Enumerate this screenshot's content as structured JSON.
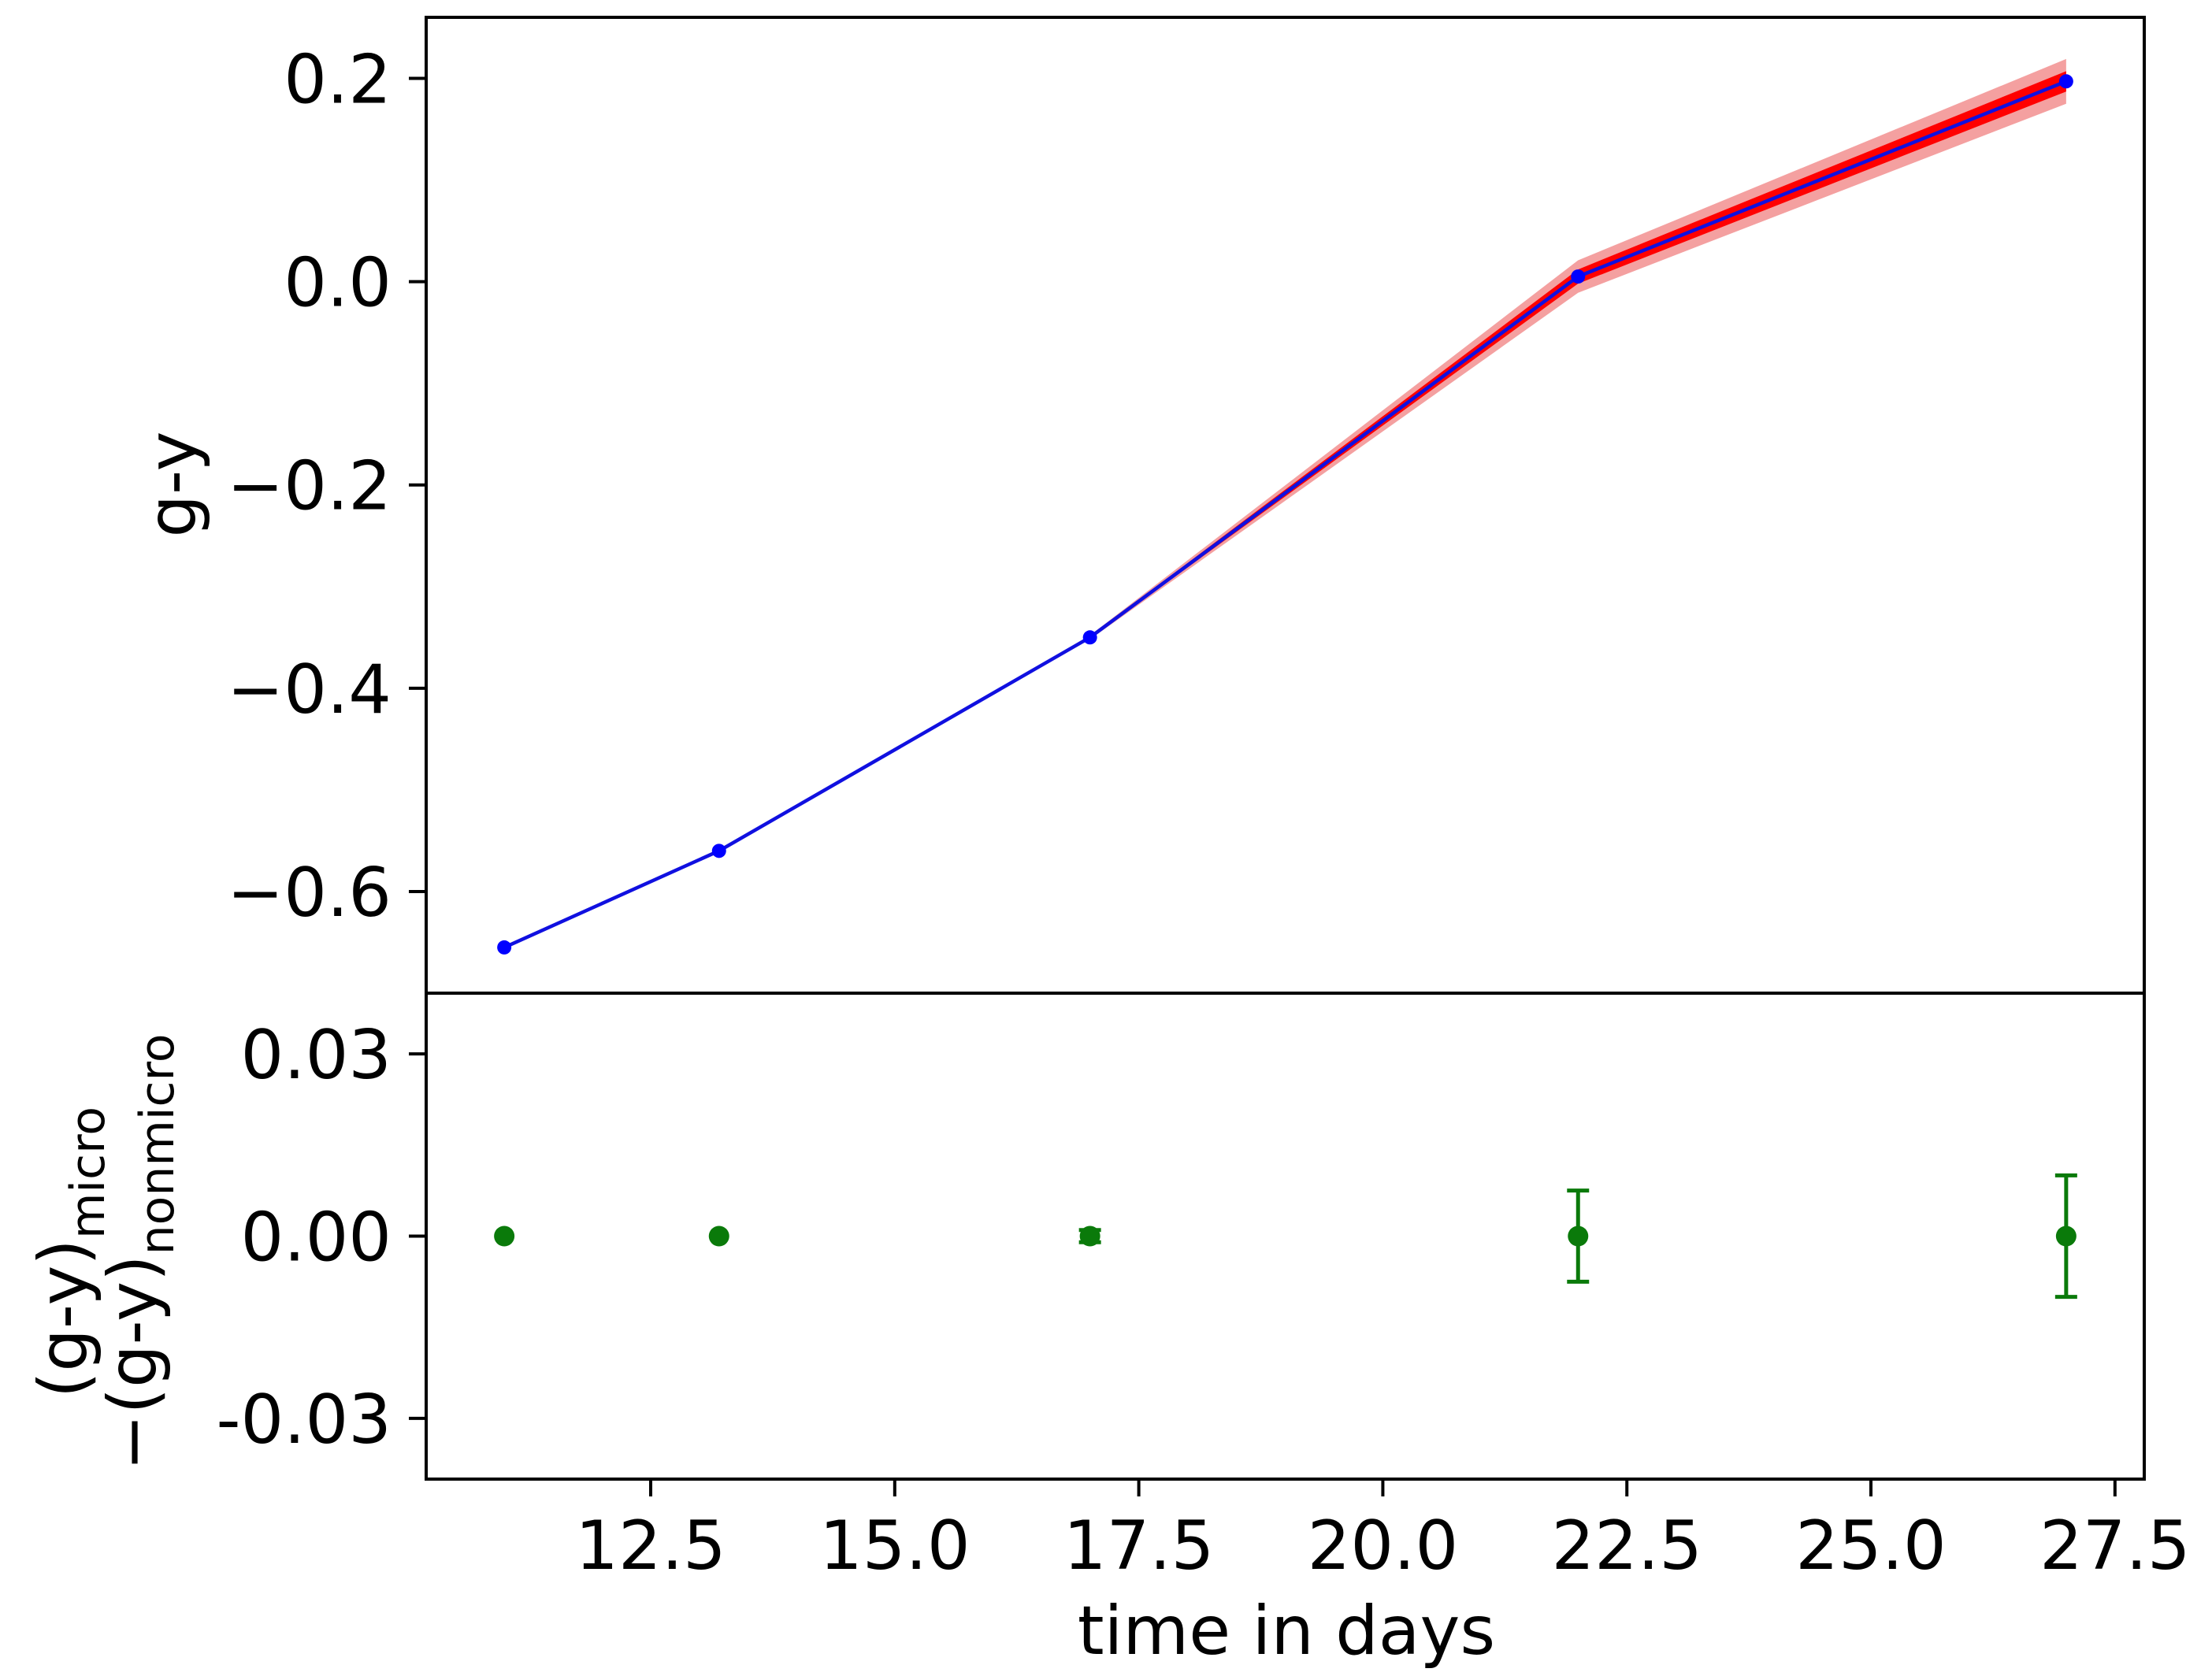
{
  "chart_data": [
    {
      "type": "line",
      "panel": "top",
      "ylabel": "g-y",
      "ylim": [
        -0.7,
        0.26
      ],
      "xlim": [
        10.2,
        27.8
      ],
      "yticks": [
        -0.6,
        -0.4,
        -0.2,
        0.0,
        0.2
      ],
      "ytick_labels": [
        "−0.6",
        "−0.4",
        "−0.2",
        "0.0",
        "0.2"
      ],
      "series": [
        {
          "x": [
            11.0,
            13.2,
            17.0,
            22.0,
            27.0
          ],
          "y": [
            -0.655,
            -0.56,
            -0.35,
            0.005,
            0.197
          ],
          "band_outer": [
            0.0,
            0.0,
            0.002,
            0.016,
            0.022
          ],
          "band_inner": [
            0.0,
            0.0,
            0.001,
            0.007,
            0.01
          ]
        }
      ],
      "colors": {
        "line": "#1010e0",
        "marker": "#0000ff",
        "band_outer": "#f4a0a0",
        "band_inner": "#ff0000"
      },
      "grid": false
    },
    {
      "type": "scatter",
      "panel": "bottom",
      "ylabel_line1": "(g-y)",
      "ylabel_line1_sub": "micro",
      "ylabel_line2": "−(g-y)",
      "ylabel_line2_sub": "nonmicro",
      "xlabel": "time in days",
      "ylim": [
        -0.04,
        0.04
      ],
      "xlim": [
        10.2,
        27.8
      ],
      "yticks": [
        -0.03,
        0.0,
        0.03
      ],
      "ytick_labels": [
        "-0.03",
        "0.00",
        "0.03"
      ],
      "xticks": [
        12.5,
        15.0,
        17.5,
        20.0,
        22.5,
        25.0,
        27.5
      ],
      "xtick_labels": [
        "12.5",
        "15.0",
        "17.5",
        "20.0",
        "22.5",
        "25.0",
        "27.5"
      ],
      "series": [
        {
          "x": [
            11.0,
            13.2,
            17.0,
            22.0,
            27.0
          ],
          "y": [
            0.0,
            0.0,
            0.0,
            0.0,
            0.0
          ],
          "err": [
            0.0,
            0.0,
            0.001,
            0.0075,
            0.01
          ]
        }
      ],
      "colors": {
        "marker": "#0a7a0a",
        "errorbar": "#0a7a0a"
      },
      "grid": false
    }
  ]
}
